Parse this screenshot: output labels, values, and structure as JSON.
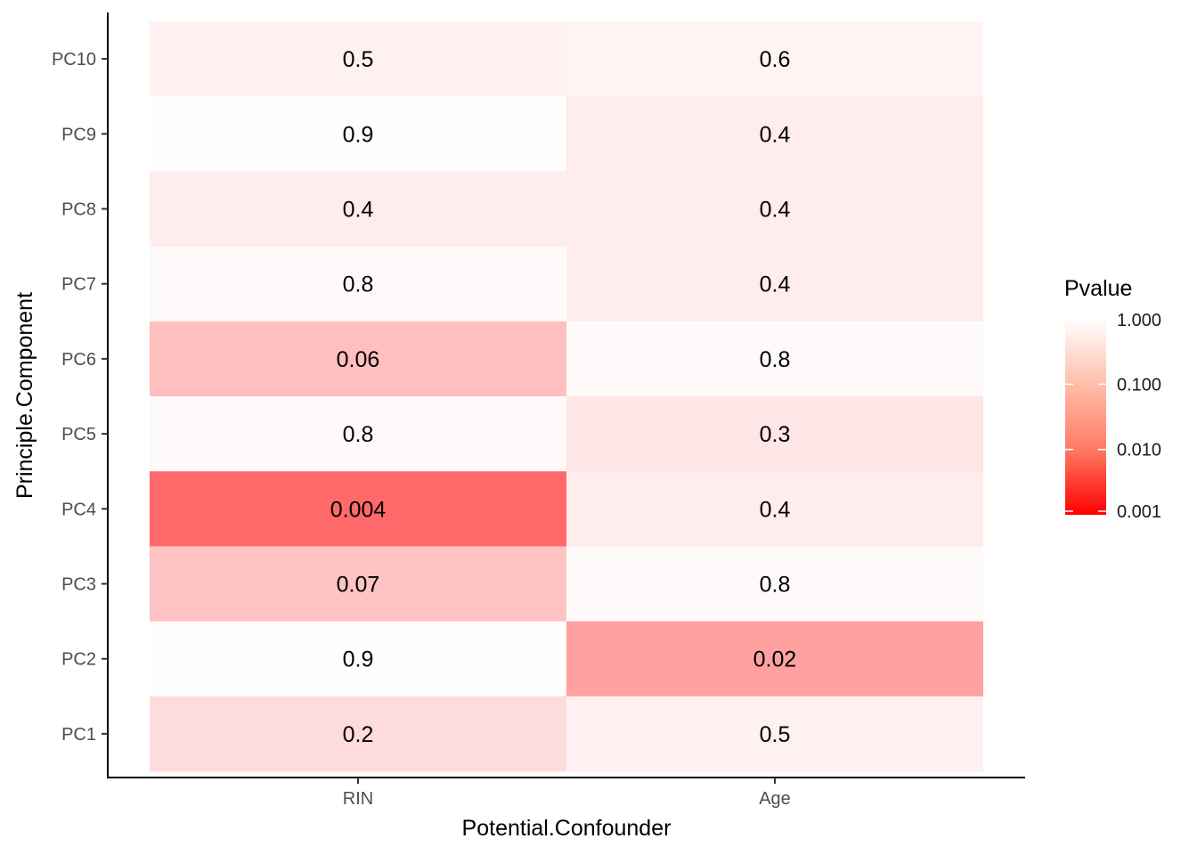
{
  "chart_data": {
    "type": "heatmap",
    "xlabel": "Potential.Confounder",
    "ylabel": "Principle.Component",
    "x_categories": [
      "RIN",
      "Age"
    ],
    "y_categories": [
      "PC1",
      "PC2",
      "PC3",
      "PC4",
      "PC5",
      "PC6",
      "PC7",
      "PC8",
      "PC9",
      "PC10"
    ],
    "cells": [
      {
        "x": "RIN",
        "y": "PC10",
        "value": 0.5,
        "label": "0.5"
      },
      {
        "x": "Age",
        "y": "PC10",
        "value": 0.6,
        "label": "0.6"
      },
      {
        "x": "RIN",
        "y": "PC9",
        "value": 0.9,
        "label": "0.9"
      },
      {
        "x": "Age",
        "y": "PC9",
        "value": 0.4,
        "label": "0.4"
      },
      {
        "x": "RIN",
        "y": "PC8",
        "value": 0.4,
        "label": "0.4"
      },
      {
        "x": "Age",
        "y": "PC8",
        "value": 0.4,
        "label": "0.4"
      },
      {
        "x": "RIN",
        "y": "PC7",
        "value": 0.8,
        "label": "0.8"
      },
      {
        "x": "Age",
        "y": "PC7",
        "value": 0.4,
        "label": "0.4"
      },
      {
        "x": "RIN",
        "y": "PC6",
        "value": 0.06,
        "label": "0.06"
      },
      {
        "x": "Age",
        "y": "PC6",
        "value": 0.8,
        "label": "0.8"
      },
      {
        "x": "RIN",
        "y": "PC5",
        "value": 0.8,
        "label": "0.8"
      },
      {
        "x": "Age",
        "y": "PC5",
        "value": 0.3,
        "label": "0.3"
      },
      {
        "x": "RIN",
        "y": "PC4",
        "value": 0.004,
        "label": "0.004"
      },
      {
        "x": "Age",
        "y": "PC4",
        "value": 0.4,
        "label": "0.4"
      },
      {
        "x": "RIN",
        "y": "PC3",
        "value": 0.07,
        "label": "0.07"
      },
      {
        "x": "Age",
        "y": "PC3",
        "value": 0.8,
        "label": "0.8"
      },
      {
        "x": "RIN",
        "y": "PC2",
        "value": 0.9,
        "label": "0.9"
      },
      {
        "x": "Age",
        "y": "PC2",
        "value": 0.02,
        "label": "0.02"
      },
      {
        "x": "RIN",
        "y": "PC1",
        "value": 0.2,
        "label": "0.2"
      },
      {
        "x": "Age",
        "y": "PC1",
        "value": 0.5,
        "label": "0.5"
      }
    ],
    "legend": {
      "title": "Pvalue",
      "scale": "log10",
      "range": [
        0.001,
        1.0
      ],
      "ticks": [
        {
          "value": 1.0,
          "label": "1.000"
        },
        {
          "value": 0.1,
          "label": "0.100"
        },
        {
          "value": 0.01,
          "label": "0.010"
        },
        {
          "value": 0.001,
          "label": "0.001"
        }
      ],
      "low_color": "#ff0000",
      "high_color": "#ffffff",
      "placement": "right"
    },
    "grid": false
  }
}
